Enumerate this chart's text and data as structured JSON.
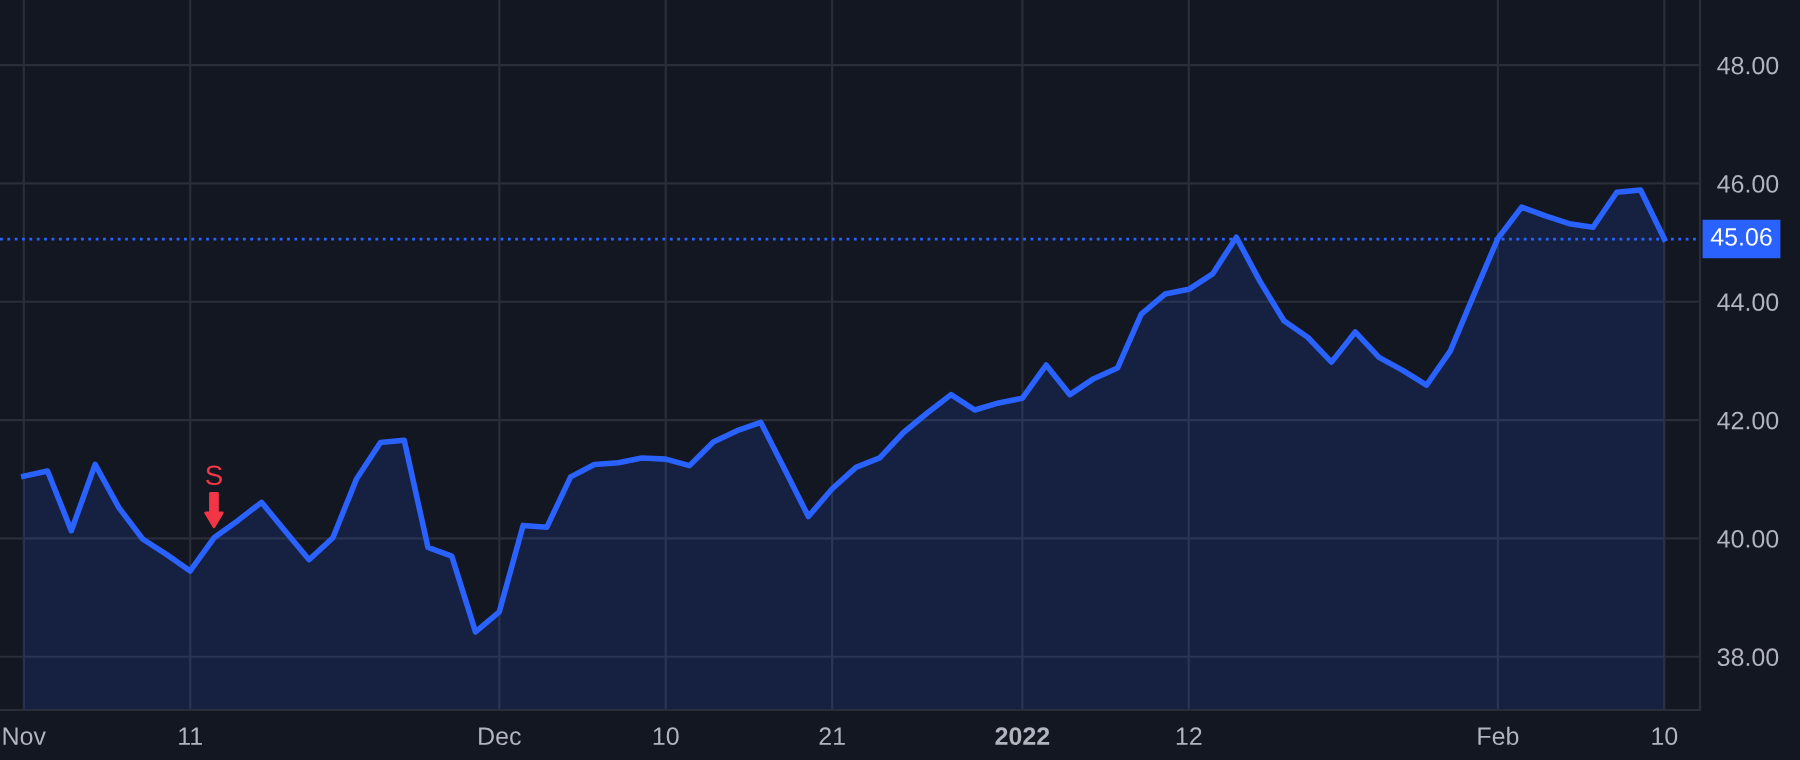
{
  "chart_data": {
    "type": "area",
    "categories": [
      "Nov",
      null,
      null,
      null,
      null,
      null,
      null,
      "11",
      null,
      null,
      null,
      null,
      null,
      null,
      null,
      null,
      null,
      null,
      null,
      null,
      "Dec",
      null,
      null,
      null,
      null,
      null,
      null,
      "10",
      null,
      null,
      null,
      null,
      null,
      null,
      "21",
      null,
      null,
      null,
      null,
      null,
      null,
      null,
      "2022",
      null,
      null,
      null,
      null,
      null,
      null,
      "12",
      null,
      null,
      null,
      null,
      null,
      null,
      null,
      null,
      null,
      null,
      null,
      null,
      "Feb",
      null,
      null,
      null,
      null,
      null,
      null,
      "10"
    ],
    "series": [
      {
        "color": "#2962ff",
        "values": [
          41.05,
          41.14,
          40.13,
          41.25,
          40.52,
          39.99,
          39.73,
          39.45,
          40.01,
          40.3,
          40.61,
          40.12,
          39.64,
          40.01,
          41.01,
          41.62,
          41.66,
          39.85,
          39.7,
          38.42,
          38.76,
          40.22,
          40.19,
          41.04,
          41.25,
          41.28,
          41.36,
          41.34,
          41.23,
          41.63,
          41.82,
          41.96,
          41.17,
          40.37,
          40.84,
          41.2,
          41.36,
          41.79,
          42.12,
          42.43,
          42.17,
          42.29,
          42.37,
          42.93,
          42.43,
          42.7,
          42.88,
          43.79,
          44.13,
          44.21,
          44.47,
          45.09,
          44.34,
          43.68,
          43.4,
          42.98,
          43.49,
          43.06,
          42.84,
          42.59,
          43.17,
          44.13,
          45.07,
          45.6,
          45.45,
          45.32,
          45.26,
          45.85,
          45.89,
          45.06
        ]
      }
    ],
    "ylim": [
      37.1,
      49.1
    ],
    "yticks": [
      {
        "value": 38,
        "label": "38.00"
      },
      {
        "value": 40,
        "label": "40.00"
      },
      {
        "value": 42,
        "label": "42.00"
      },
      {
        "value": 44,
        "label": "44.00"
      },
      {
        "value": 46,
        "label": "46.00"
      },
      {
        "value": 48,
        "label": "48.00"
      }
    ],
    "ref_lines": [
      {
        "axis": "y",
        "value": 45.06,
        "label": "45.06",
        "color": "#2962ff",
        "line_style": "dotted"
      }
    ],
    "annotations": [
      {
        "text": "S",
        "y": 40.01
      }
    ],
    "grid": true
  }
}
